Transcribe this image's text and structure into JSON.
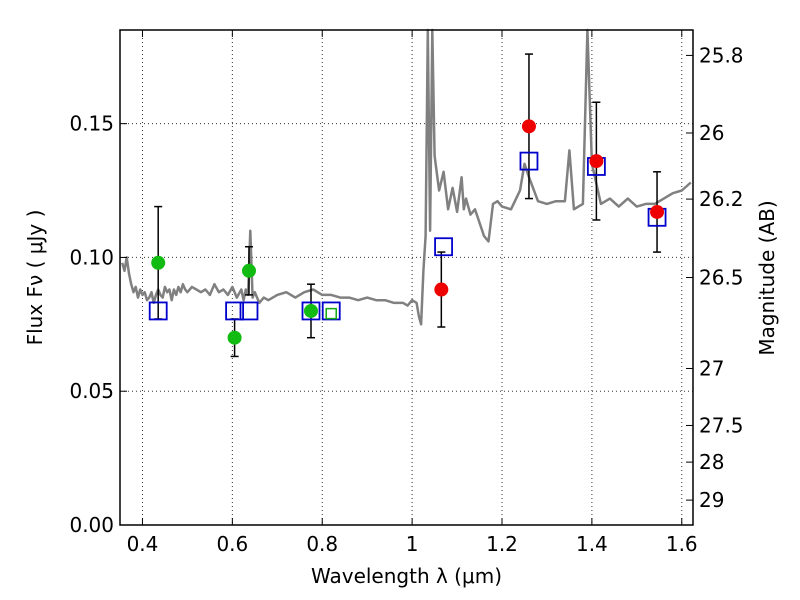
{
  "chart_data": {
    "type": "scatter",
    "title": "",
    "xlabel": "Wavelength  λ (μm)",
    "ylabel": "Flux  Fν  ( μJy )",
    "y2label": "Magnitude (AB)",
    "xlim": [
      0.35,
      1.625
    ],
    "ylim": [
      0.0,
      0.185
    ],
    "x_ticks": [
      0.4,
      0.6,
      0.8,
      1.0,
      1.2,
      1.4,
      1.6
    ],
    "x_tick_labels": [
      "0.4",
      "0.6",
      "0.8",
      "1",
      "1.2",
      "1.4",
      "1.6"
    ],
    "y_ticks": [
      0.0,
      0.05,
      0.1,
      0.15
    ],
    "y_tick_labels": [
      "0.00",
      "0.05",
      "0.10",
      "0.15"
    ],
    "y2_ticks": [
      {
        "label": "25.8",
        "flux": 0.1755
      },
      {
        "label": "26",
        "flux": 0.1465
      },
      {
        "label": "26.2",
        "flux": 0.1218
      },
      {
        "label": "26.5",
        "flux": 0.0925
      },
      {
        "label": "27",
        "flux": 0.0585
      },
      {
        "label": "27.5",
        "flux": 0.0372
      },
      {
        "label": "28",
        "flux": 0.0235
      },
      {
        "label": "29",
        "flux": 0.0093
      }
    ],
    "grid": true,
    "colors": {
      "green": "#11bb11",
      "red": "#ee0000",
      "blue": "#0000cc",
      "model": "#808080",
      "errorbar": "#000000",
      "greensquare": "#11aa11"
    },
    "series": [
      {
        "name": "model spectrum",
        "kind": "line",
        "x": [
          0.355,
          0.36,
          0.365,
          0.37,
          0.375,
          0.38,
          0.385,
          0.39,
          0.395,
          0.4,
          0.405,
          0.41,
          0.415,
          0.42,
          0.425,
          0.43,
          0.435,
          0.44,
          0.445,
          0.45,
          0.455,
          0.46,
          0.465,
          0.47,
          0.475,
          0.48,
          0.485,
          0.49,
          0.495,
          0.5,
          0.51,
          0.52,
          0.53,
          0.54,
          0.55,
          0.56,
          0.57,
          0.58,
          0.59,
          0.6,
          0.61,
          0.62,
          0.625,
          0.63,
          0.635,
          0.64,
          0.645,
          0.65,
          0.66,
          0.67,
          0.68,
          0.69,
          0.7,
          0.72,
          0.74,
          0.76,
          0.78,
          0.8,
          0.82,
          0.84,
          0.86,
          0.88,
          0.9,
          0.92,
          0.94,
          0.96,
          0.98,
          0.99,
          1.0,
          1.01,
          1.015,
          1.02,
          1.025,
          1.03,
          1.035,
          1.04,
          1.045,
          1.05,
          1.06,
          1.07,
          1.08,
          1.09,
          1.1,
          1.11,
          1.115,
          1.12,
          1.13,
          1.14,
          1.15,
          1.16,
          1.17,
          1.18,
          1.19,
          1.2,
          1.22,
          1.24,
          1.25,
          1.26,
          1.28,
          1.3,
          1.32,
          1.34,
          1.35,
          1.36,
          1.37,
          1.38,
          1.39,
          1.4,
          1.42,
          1.44,
          1.46,
          1.48,
          1.5,
          1.52,
          1.54,
          1.56,
          1.58,
          1.6,
          1.62
        ],
        "y": [
          0.098,
          0.095,
          0.1,
          0.094,
          0.09,
          0.087,
          0.089,
          0.085,
          0.088,
          0.086,
          0.087,
          0.084,
          0.085,
          0.087,
          0.083,
          0.086,
          0.088,
          0.086,
          0.085,
          0.089,
          0.087,
          0.088,
          0.084,
          0.088,
          0.086,
          0.089,
          0.087,
          0.09,
          0.088,
          0.087,
          0.089,
          0.088,
          0.087,
          0.088,
          0.086,
          0.09,
          0.087,
          0.088,
          0.086,
          0.089,
          0.085,
          0.088,
          0.084,
          0.088,
          0.086,
          0.11,
          0.085,
          0.087,
          0.083,
          0.085,
          0.084,
          0.085,
          0.086,
          0.087,
          0.085,
          0.087,
          0.088,
          0.086,
          0.086,
          0.085,
          0.085,
          0.084,
          0.085,
          0.084,
          0.084,
          0.083,
          0.083,
          0.082,
          0.084,
          0.083,
          0.078,
          0.075,
          0.095,
          0.108,
          0.185,
          0.11,
          0.185,
          0.138,
          0.125,
          0.132,
          0.118,
          0.126,
          0.117,
          0.13,
          0.118,
          0.122,
          0.116,
          0.118,
          0.113,
          0.108,
          0.106,
          0.12,
          0.121,
          0.119,
          0.118,
          0.125,
          0.135,
          0.13,
          0.121,
          0.12,
          0.121,
          0.121,
          0.14,
          0.118,
          0.119,
          0.12,
          0.185,
          0.135,
          0.12,
          0.122,
          0.119,
          0.122,
          0.119,
          0.12,
          0.12,
          0.122,
          0.124,
          0.125,
          0.128
        ]
      },
      {
        "name": "green measurements",
        "kind": "points",
        "points": [
          {
            "x": 0.435,
            "y": 0.098,
            "err": 0.021
          },
          {
            "x": 0.605,
            "y": 0.07,
            "err": 0.007
          },
          {
            "x": 0.637,
            "y": 0.095,
            "err": 0.009
          },
          {
            "x": 0.775,
            "y": 0.08,
            "err": 0.01
          }
        ]
      },
      {
        "name": "red measurements",
        "kind": "points",
        "points": [
          {
            "x": 1.065,
            "y": 0.088,
            "err": 0.014
          },
          {
            "x": 1.26,
            "y": 0.149,
            "err": 0.027
          },
          {
            "x": 1.41,
            "y": 0.136,
            "err": 0.022
          },
          {
            "x": 1.545,
            "y": 0.117,
            "err": 0.015
          }
        ]
      },
      {
        "name": "model photometry",
        "kind": "squares",
        "points": [
          {
            "x": 0.435,
            "y": 0.08
          },
          {
            "x": 0.605,
            "y": 0.08
          },
          {
            "x": 0.637,
            "y": 0.08
          },
          {
            "x": 0.775,
            "y": 0.08
          },
          {
            "x": 0.82,
            "y": 0.08
          },
          {
            "x": 1.07,
            "y": 0.104
          },
          {
            "x": 1.26,
            "y": 0.136
          },
          {
            "x": 1.41,
            "y": 0.134
          },
          {
            "x": 1.545,
            "y": 0.115
          }
        ]
      },
      {
        "name": "small green square",
        "kind": "squares",
        "points": [
          {
            "x": 0.82,
            "y": 0.079
          }
        ]
      }
    ]
  }
}
